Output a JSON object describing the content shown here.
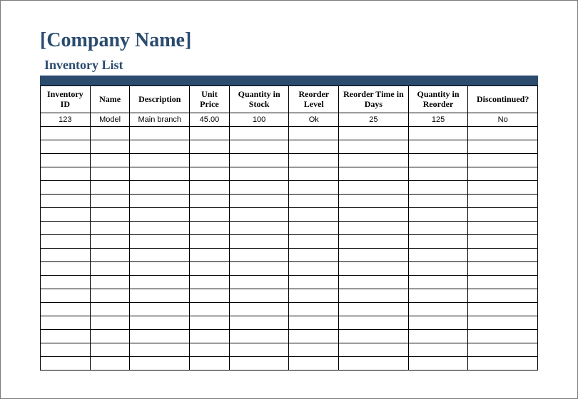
{
  "header": {
    "company_name": "[Company Name]",
    "subtitle": "Inventory List"
  },
  "table": {
    "type": "table",
    "header_bar_color": "#2b4b6f",
    "title_color": "#2b4b6f",
    "border_color": "#000000",
    "background_color": "#ffffff",
    "header_fontsize": 12,
    "cell_fontsize": 11,
    "columns": [
      "Inventory ID",
      "Name",
      "Description",
      "Unit Price",
      "Quantity in Stock",
      "Reorder Level",
      "Reorder Time in Days",
      "Quantity in Reorder",
      "Discontinued?"
    ],
    "rows": [
      [
        "123",
        "Model",
        "Main branch",
        "45.00",
        "100",
        "Ok",
        "25",
        "125",
        "No"
      ],
      [
        "",
        "",
        "",
        "",
        "",
        "",
        "",
        "",
        ""
      ],
      [
        "",
        "",
        "",
        "",
        "",
        "",
        "",
        "",
        ""
      ],
      [
        "",
        "",
        "",
        "",
        "",
        "",
        "",
        "",
        ""
      ],
      [
        "",
        "",
        "",
        "",
        "",
        "",
        "",
        "",
        ""
      ],
      [
        "",
        "",
        "",
        "",
        "",
        "",
        "",
        "",
        ""
      ],
      [
        "",
        "",
        "",
        "",
        "",
        "",
        "",
        "",
        ""
      ],
      [
        "",
        "",
        "",
        "",
        "",
        "",
        "",
        "",
        ""
      ],
      [
        "",
        "",
        "",
        "",
        "",
        "",
        "",
        "",
        ""
      ],
      [
        "",
        "",
        "",
        "",
        "",
        "",
        "",
        "",
        ""
      ],
      [
        "",
        "",
        "",
        "",
        "",
        "",
        "",
        "",
        ""
      ],
      [
        "",
        "",
        "",
        "",
        "",
        "",
        "",
        "",
        ""
      ],
      [
        "",
        "",
        "",
        "",
        "",
        "",
        "",
        "",
        ""
      ],
      [
        "",
        "",
        "",
        "",
        "",
        "",
        "",
        "",
        ""
      ],
      [
        "",
        "",
        "",
        "",
        "",
        "",
        "",
        "",
        ""
      ],
      [
        "",
        "",
        "",
        "",
        "",
        "",
        "",
        "",
        ""
      ],
      [
        "",
        "",
        "",
        "",
        "",
        "",
        "",
        "",
        ""
      ],
      [
        "",
        "",
        "",
        "",
        "",
        "",
        "",
        "",
        ""
      ],
      [
        "",
        "",
        "",
        "",
        "",
        "",
        "",
        "",
        ""
      ]
    ]
  }
}
